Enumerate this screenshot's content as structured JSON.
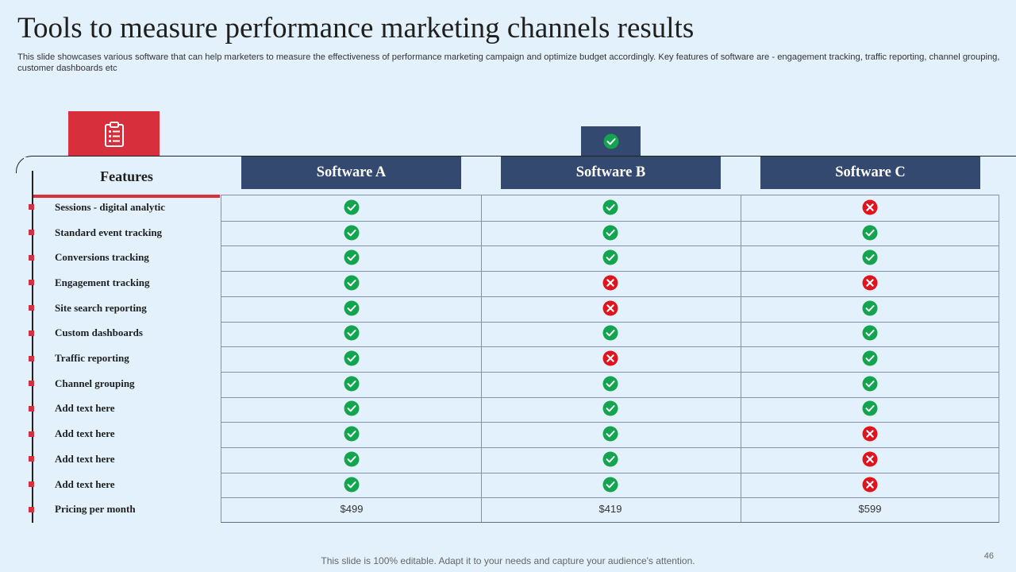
{
  "slide": {
    "title": "Tools to measure performance marketing channels results",
    "subtitle": "This slide showcases various software that can help marketers to measure the effectiveness of performance marketing campaign and optimize budget accordingly. Key features of software are - engagement tracking, traffic reporting, channel grouping, customer dashboards etc",
    "footer": "This slide is 100% editable. Adapt it to your needs and capture your audience's attention.",
    "page_number": "46"
  },
  "icons": {
    "left": "clipboard-checklist-icon",
    "right": "check-circle-icon"
  },
  "colors": {
    "accent_red": "#d72f3b",
    "navy": "#33496f",
    "check_green": "#12a44f",
    "cross_red": "#e0141e",
    "background": "#e3f1fc"
  },
  "table": {
    "features_header": "Features",
    "columns": [
      "Software A",
      "Software B",
      "Software C"
    ],
    "rows": [
      {
        "feature": "Sessions - digital analytic",
        "values": [
          "yes",
          "yes",
          "no"
        ]
      },
      {
        "feature": "Standard event tracking",
        "values": [
          "yes",
          "yes",
          "yes"
        ]
      },
      {
        "feature": "Conversions tracking",
        "values": [
          "yes",
          "yes",
          "yes"
        ]
      },
      {
        "feature": "Engagement tracking",
        "values": [
          "yes",
          "no",
          "no"
        ]
      },
      {
        "feature": "Site search reporting",
        "values": [
          "yes",
          "no",
          "yes"
        ]
      },
      {
        "feature": "Custom dashboards",
        "values": [
          "yes",
          "yes",
          "yes"
        ]
      },
      {
        "feature": "Traffic reporting",
        "values": [
          "yes",
          "no",
          "yes"
        ]
      },
      {
        "feature": "Channel grouping",
        "values": [
          "yes",
          "yes",
          "yes"
        ]
      },
      {
        "feature": "Add text here",
        "values": [
          "yes",
          "yes",
          "yes"
        ]
      },
      {
        "feature": "Add text here",
        "values": [
          "yes",
          "yes",
          "no"
        ]
      },
      {
        "feature": "Add text here",
        "values": [
          "yes",
          "yes",
          "no"
        ]
      },
      {
        "feature": "Add text here",
        "values": [
          "yes",
          "yes",
          "no"
        ]
      }
    ],
    "pricing": {
      "feature": "Pricing per month",
      "values": [
        "$499",
        "$419",
        "$599"
      ]
    }
  }
}
